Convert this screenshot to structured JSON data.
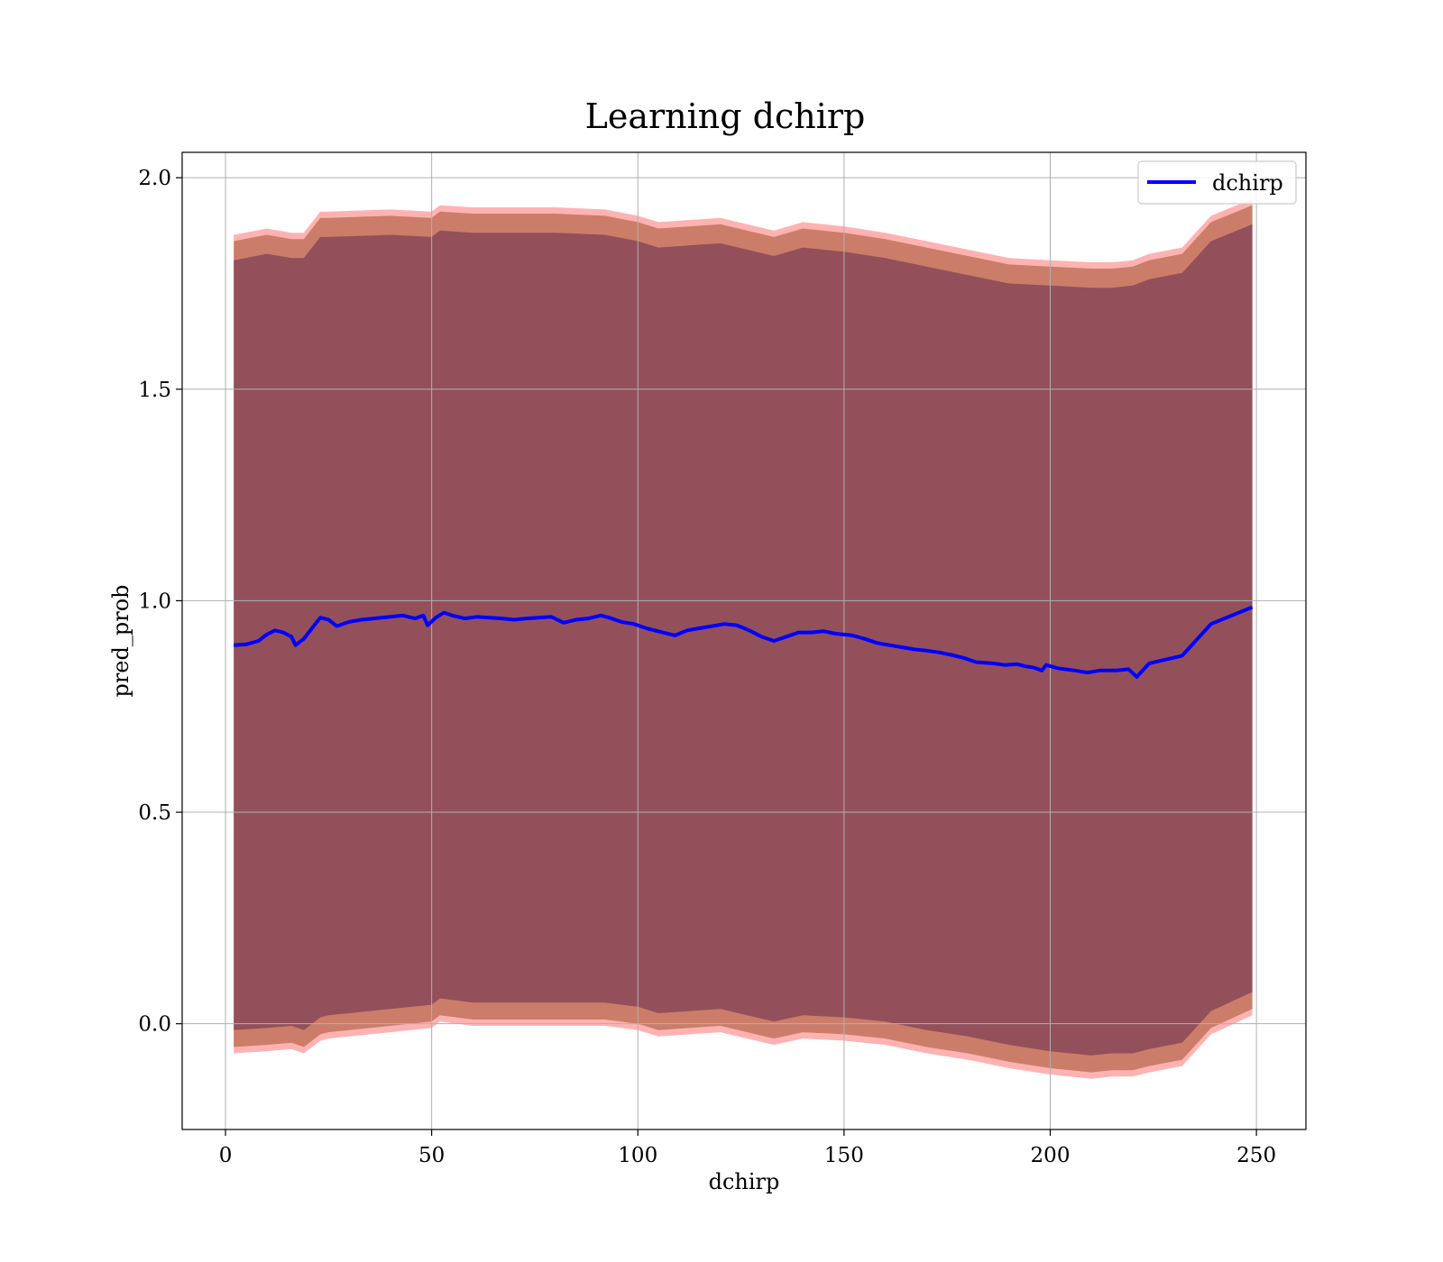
{
  "chart_data": {
    "type": "line",
    "title": "Learning dchirp",
    "xlabel": "dchirp",
    "ylabel": "pred_prob",
    "xlim": [
      -10.5,
      262
    ],
    "ylim": [
      -0.25,
      2.06
    ],
    "xticks": [
      0,
      50,
      100,
      150,
      200,
      250
    ],
    "xtick_labels": [
      "0",
      "50",
      "100",
      "150",
      "200",
      "250"
    ],
    "yticks": [
      0.0,
      0.5,
      1.0,
      1.5,
      2.0
    ],
    "ytick_labels": [
      "0.0",
      "0.5",
      "1.0",
      "1.5",
      "2.0"
    ],
    "grid": true,
    "legend": {
      "position": "top-right",
      "entries": [
        "dchirp"
      ]
    },
    "series": [
      {
        "name": "dchirp",
        "color": "#0000ff",
        "x": [
          2,
          5,
          8,
          10,
          12,
          14,
          16,
          17,
          19,
          21,
          23,
          25,
          27,
          30,
          33,
          36,
          40,
          43,
          46,
          48,
          49,
          51,
          53,
          55,
          58,
          61,
          64,
          67,
          70,
          73,
          76,
          79,
          82,
          85,
          88,
          91,
          93,
          96,
          99,
          102,
          106,
          109,
          112,
          115,
          118,
          121,
          124,
          127,
          130,
          133,
          136,
          139,
          142,
          145,
          148,
          152,
          155,
          158,
          161,
          164,
          167,
          170,
          173,
          176,
          179,
          182,
          186,
          189,
          192,
          194,
          196,
          198,
          199,
          202,
          206,
          209,
          212,
          216,
          219,
          221,
          224,
          232,
          239,
          249
        ],
        "y": [
          0.895,
          0.897,
          0.905,
          0.92,
          0.93,
          0.925,
          0.915,
          0.895,
          0.91,
          0.935,
          0.96,
          0.955,
          0.94,
          0.95,
          0.955,
          0.958,
          0.962,
          0.965,
          0.958,
          0.965,
          0.942,
          0.96,
          0.972,
          0.965,
          0.958,
          0.962,
          0.96,
          0.958,
          0.955,
          0.958,
          0.96,
          0.962,
          0.948,
          0.955,
          0.958,
          0.965,
          0.96,
          0.95,
          0.945,
          0.935,
          0.925,
          0.918,
          0.93,
          0.935,
          0.94,
          0.945,
          0.942,
          0.93,
          0.915,
          0.905,
          0.915,
          0.925,
          0.925,
          0.928,
          0.922,
          0.918,
          0.91,
          0.9,
          0.895,
          0.89,
          0.885,
          0.882,
          0.878,
          0.872,
          0.865,
          0.855,
          0.852,
          0.848,
          0.85,
          0.845,
          0.842,
          0.835,
          0.848,
          0.84,
          0.835,
          0.83,
          0.835,
          0.835,
          0.838,
          0.82,
          0.852,
          0.87,
          0.945,
          0.985
        ]
      }
    ],
    "bands": [
      {
        "color": "#ff0000",
        "opacity": 0.3,
        "x": [
          2,
          10,
          16,
          19,
          23,
          25,
          40,
          50,
          52,
          60,
          80,
          92,
          100,
          105,
          120,
          133,
          140,
          150,
          160,
          170,
          180,
          190,
          200,
          210,
          215,
          220,
          224,
          232,
          239,
          249
        ],
        "upper": [
          1.865,
          1.88,
          1.87,
          1.87,
          1.92,
          1.92,
          1.925,
          1.92,
          1.935,
          1.93,
          1.93,
          1.925,
          1.91,
          1.895,
          1.905,
          1.875,
          1.895,
          1.885,
          1.87,
          1.85,
          1.83,
          1.81,
          1.805,
          1.8,
          1.8,
          1.805,
          1.82,
          1.835,
          1.91,
          1.95
        ],
        "lower": [
          -0.07,
          -0.065,
          -0.06,
          -0.07,
          -0.04,
          -0.035,
          -0.02,
          -0.01,
          0.005,
          -0.005,
          -0.005,
          -0.005,
          -0.015,
          -0.03,
          -0.02,
          -0.05,
          -0.035,
          -0.04,
          -0.05,
          -0.07,
          -0.085,
          -0.105,
          -0.12,
          -0.13,
          -0.125,
          -0.125,
          -0.115,
          -0.1,
          -0.025,
          0.02
        ]
      },
      {
        "color": "#a0522d",
        "opacity": 0.55,
        "x": [
          2,
          10,
          16,
          19,
          23,
          25,
          40,
          50,
          52,
          60,
          80,
          92,
          100,
          105,
          120,
          133,
          140,
          150,
          160,
          170,
          180,
          190,
          200,
          210,
          215,
          220,
          224,
          232,
          239,
          249
        ],
        "upper": [
          1.85,
          1.865,
          1.855,
          1.855,
          1.905,
          1.905,
          1.91,
          1.905,
          1.92,
          1.915,
          1.915,
          1.91,
          1.895,
          1.88,
          1.89,
          1.86,
          1.88,
          1.87,
          1.855,
          1.835,
          1.815,
          1.795,
          1.79,
          1.785,
          1.785,
          1.79,
          1.805,
          1.82,
          1.895,
          1.935
        ],
        "lower": [
          -0.055,
          -0.05,
          -0.045,
          -0.055,
          -0.025,
          -0.02,
          -0.005,
          0.005,
          0.02,
          0.01,
          0.01,
          0.01,
          0.0,
          -0.015,
          -0.005,
          -0.035,
          -0.02,
          -0.025,
          -0.035,
          -0.055,
          -0.07,
          -0.09,
          -0.105,
          -0.115,
          -0.11,
          -0.11,
          -0.1,
          -0.085,
          -0.01,
          0.035
        ]
      },
      {
        "color": "#7a3d55",
        "opacity": 0.7,
        "x": [
          2,
          10,
          16,
          19,
          23,
          25,
          40,
          50,
          52,
          60,
          80,
          92,
          100,
          105,
          120,
          133,
          140,
          150,
          160,
          170,
          180,
          190,
          200,
          210,
          215,
          220,
          224,
          232,
          239,
          249
        ],
        "upper": [
          1.805,
          1.82,
          1.81,
          1.81,
          1.86,
          1.86,
          1.865,
          1.86,
          1.875,
          1.87,
          1.87,
          1.865,
          1.85,
          1.835,
          1.845,
          1.815,
          1.835,
          1.825,
          1.81,
          1.79,
          1.77,
          1.75,
          1.745,
          1.74,
          1.74,
          1.745,
          1.76,
          1.775,
          1.85,
          1.89
        ],
        "lower": [
          -0.015,
          -0.01,
          -0.005,
          -0.015,
          0.015,
          0.02,
          0.035,
          0.045,
          0.06,
          0.05,
          0.05,
          0.05,
          0.04,
          0.025,
          0.035,
          0.005,
          0.02,
          0.015,
          0.005,
          -0.015,
          -0.03,
          -0.05,
          -0.065,
          -0.075,
          -0.07,
          -0.07,
          -0.06,
          -0.045,
          0.03,
          0.075
        ]
      }
    ]
  }
}
